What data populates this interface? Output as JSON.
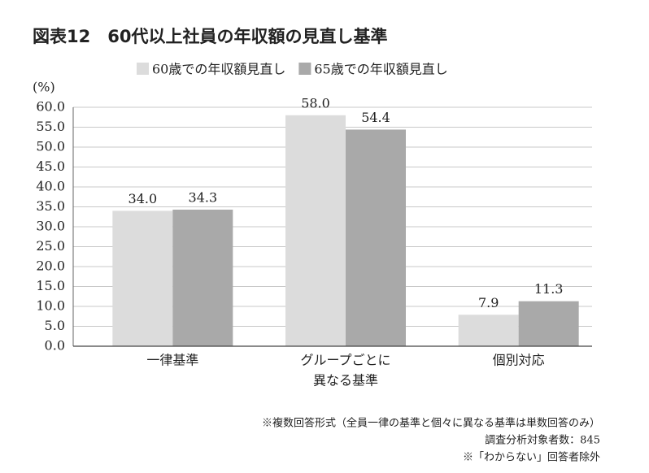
{
  "chart_data": {
    "type": "bar",
    "title": "図表12　60代以上社員の年収額の見直し基準",
    "y_unit": "(%)",
    "categories": [
      [
        "一律基準"
      ],
      [
        "グループごとに",
        "異なる基準"
      ],
      [
        "個別対応"
      ]
    ],
    "series": [
      {
        "name": "60歳での年収額見直し",
        "color": "#dcdcdc",
        "values": [
          34.0,
          58.0,
          7.9
        ],
        "value_labels": [
          "34.0",
          "58.0",
          "7.9"
        ]
      },
      {
        "name": "65歳での年収額見直し",
        "color": "#a9a9a9",
        "values": [
          34.3,
          54.4,
          11.3
        ],
        "value_labels": [
          "34.3",
          "54.4",
          "11.3"
        ]
      }
    ],
    "ylim": [
      0,
      60
    ],
    "yticks": [
      {
        "value": 0,
        "label": "0.0"
      },
      {
        "value": 5,
        "label": "5.0"
      },
      {
        "value": 10,
        "label": "10.0"
      },
      {
        "value": 15,
        "label": "15.0"
      },
      {
        "value": 20,
        "label": "20.0"
      },
      {
        "value": 25,
        "label": "25.0"
      },
      {
        "value": 30,
        "label": "30.0"
      },
      {
        "value": 35,
        "label": "35.0"
      },
      {
        "value": 40,
        "label": "40.0"
      },
      {
        "value": 45,
        "label": "45.0"
      },
      {
        "value": 50,
        "label": "50.0"
      },
      {
        "value": 55,
        "label": "55.0"
      },
      {
        "value": 60,
        "label": "60.0"
      }
    ],
    "grid": true,
    "notes": [
      "※複数回答形式（全員一律の基準と個々に異なる基準は単数回答のみ）",
      "調査分析対象者数：845",
      "※「わからない」回答者除外"
    ]
  }
}
